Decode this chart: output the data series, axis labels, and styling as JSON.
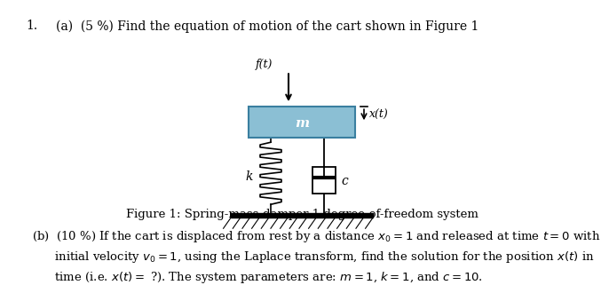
{
  "bg_color": "#ffffff",
  "mass_color": "#8bbfd4",
  "mass_edge_color": "#4a90a4",
  "title_num": "1.",
  "part_a": "(a)  (5 %) Find the equation of motion of the cart shown in Figure 1",
  "figure_caption": "Figure 1: Spring-mass-damper 1 degree-of-freedom system",
  "mass_label": "m",
  "spring_label": "k",
  "damper_label": "c",
  "force_label": "f(t)",
  "disp_label": "x(t)",
  "part_b_line1": "(b)  (10 %) If the cart is displaced from rest by a distance $x_0 = 1$ and released at time $t = 0$ with",
  "part_b_line2": "      initial velocity $v_0 = 1$, using the Laplace transform, find the solution for the position $x(t)$ in",
  "part_b_line3": "      time (i.e. $x(t) = $ ?). The system parameters are: $m = 1$, $k = 1$, and $c = 10$."
}
